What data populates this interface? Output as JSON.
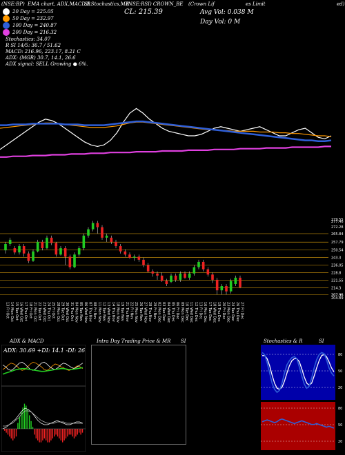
{
  "header": {
    "code": "(NSE:BP)",
    "line1_mid": "EMA chart, ADX,MACD,B",
    "line1_right": "SI,Stochastics,MR",
    "line1_name": "(NSE:RSI) CROWN_BE",
    "line1_far": "(Crown Lif",
    "line1_end": "es Limit",
    "line1_last": "ed)",
    "close_label": "CL: 215.39",
    "avg_vol": "Avg Vol: 0.038  M",
    "day_vol": "Day Vol: 0  M"
  },
  "legend": [
    {
      "label": "20  Day = 225.05",
      "color": "#ffffff"
    },
    {
      "label": "50  Day = 232.97",
      "color": "#ff9900"
    },
    {
      "label": "100  Day = 240.87",
      "color": "#2f5fd8"
    },
    {
      "label": "200  Day = 216.32",
      "color": "#e040e0"
    }
  ],
  "indicators": [
    "Stochastics: 34.07",
    "R                   SI 14/5: 36.7 / 51.62",
    "MACD: 216.96,  223.17,  8.21 C"
  ],
  "adx_lines": [
    "ADX:                              (MGR) 30.7, 14.1, 26.6",
    "ADX  signal: SELL Growing ● 6%."
  ],
  "price_levels": [
    "279.55",
    "277.46",
    "272.28",
    "265.84",
    "257.79",
    "250.54",
    "243.3",
    "236.05",
    "228.8",
    "221.55",
    "214.3",
    "207.96",
    "207.95",
    "204.89"
  ],
  "dates": [
    "13 Fri Oct",
    "14 Mon Oct",
    "15 Tue Oct",
    "16 Wed Oct",
    "17 Thu Oct",
    "18 Fri Oct",
    "21 Mon Oct",
    "22 Tue Oct",
    "23 Wed Oct",
    "24 Thu Oct",
    "25 Fri Oct",
    "28 Mon Oct",
    "29 Tue Oct",
    "30 Wed Oct",
    "31 Thu Oct",
    "04 Mon Nov",
    "05 Tue Nov",
    "06 Wed Nov",
    "07 Thu Nov",
    "08 Fri Nov",
    "11 Mon Nov",
    "12 Tue Nov",
    "13 Wed Nov",
    "14 Thu Nov",
    "18 Mon Nov",
    "19 Tue Nov",
    "21 Thu Nov",
    "22 Fri Nov",
    "25 Mon Nov",
    "26 Tue Nov",
    "27 Wed Nov",
    "28 Thu Nov",
    "29 Fri Nov",
    "02 Mon Dec",
    "03 Tue Dec",
    "04 Wed Dec",
    "05 Thu Dec",
    "06 Fri Dec",
    "09 Mon Dec",
    "10 Tue Dec",
    "11 Wed Dec",
    "12 Thu Dec",
    "13 Fri Dec",
    "16 Mon Dec",
    "17 Tue Dec",
    "18 Wed Dec",
    "19 Thu Dec",
    "20 Fri Dec",
    "23 Mon Dec",
    "24 Tue Dec",
    "26 Thu Dec",
    "27 Fri Dec"
  ],
  "panels": {
    "adx_title": "ADX  & MACD",
    "adx_box": "ADX: 30.69 +DI: 14.1 -DI: 26.59",
    "mr_title": "Intra  Day Trading Price  & MR",
    "mr_title_right": "SI",
    "stoch_title": "Stochastics & R",
    "stoch_title_right": "SI",
    "stoch_ticks": [
      "80",
      "50",
      "20"
    ],
    "rsi_ticks": [
      "80",
      "50",
      "20"
    ]
  },
  "colors": {
    "up": "#22cc22",
    "down": "#ee2222",
    "ema20": "#ffffff",
    "ema50": "#ff9900",
    "ema100": "#2f5fd8",
    "ema200": "#e040e0",
    "level": "#b8860b",
    "stoch_bg": "#0000aa",
    "rsi_bg": "#aa0000"
  },
  "chart_data": {
    "type": "candlestick",
    "ylim": [
      204.89,
      279.55
    ],
    "categories": [
      "13 Fri Oct",
      "14 Mon Oct",
      "15 Tue Oct",
      "16 Wed Oct",
      "17 Thu Oct",
      "18 Fri Oct",
      "21 Mon Oct",
      "22 Tue Oct",
      "23 Wed Oct",
      "24 Thu Oct",
      "25 Fri Oct",
      "28 Mon Oct",
      "29 Tue Oct",
      "30 Wed Oct",
      "31 Thu Oct",
      "04 Mon Nov",
      "05 Tue Nov",
      "06 Wed Nov",
      "07 Thu Nov",
      "08 Fri Nov",
      "11 Mon Nov",
      "12 Tue Nov",
      "13 Wed Nov",
      "14 Thu Nov",
      "18 Mon Nov",
      "19 Tue Nov",
      "21 Thu Nov",
      "22 Fri Nov",
      "25 Mon Nov",
      "26 Tue Nov",
      "27 Wed Nov",
      "28 Thu Nov",
      "29 Fri Nov",
      "02 Mon Dec",
      "03 Tue Dec",
      "04 Wed Dec",
      "05 Thu Dec",
      "06 Fri Dec",
      "09 Mon Dec",
      "10 Tue Dec",
      "11 Wed Dec",
      "12 Thu Dec",
      "13 Fri Dec",
      "16 Mon Dec",
      "17 Tue Dec",
      "18 Wed Dec",
      "19 Thu Dec",
      "20 Fri Dec",
      "23 Mon Dec",
      "24 Tue Dec",
      "26 Thu Dec",
      "27 Fri Dec"
    ],
    "candles": [
      [
        250,
        256,
        258,
        247
      ],
      [
        256,
        260,
        262,
        254
      ],
      [
        252,
        248,
        254,
        246
      ],
      [
        248,
        254,
        256,
        246
      ],
      [
        254,
        247,
        256,
        244
      ],
      [
        247,
        240,
        249,
        238
      ],
      [
        240,
        249,
        251,
        239
      ],
      [
        249,
        258,
        260,
        248
      ],
      [
        258,
        252,
        260,
        250
      ],
      [
        252,
        262,
        264,
        251
      ],
      [
        262,
        257,
        264,
        255
      ],
      [
        257,
        246,
        258,
        244
      ],
      [
        246,
        252,
        254,
        245
      ],
      [
        252,
        244,
        254,
        236
      ],
      [
        244,
        234,
        246,
        232
      ],
      [
        234,
        246,
        248,
        233
      ],
      [
        246,
        252,
        254,
        244
      ],
      [
        252,
        264,
        266,
        250
      ],
      [
        264,
        270,
        272,
        262
      ],
      [
        270,
        276,
        278,
        268
      ],
      [
        276,
        272,
        278,
        266
      ],
      [
        272,
        262,
        274,
        260
      ],
      [
        262,
        264,
        266,
        258
      ],
      [
        262,
        258,
        264,
        256
      ],
      [
        258,
        254,
        260,
        252
      ],
      [
        254,
        249,
        256,
        247
      ],
      [
        249,
        246,
        251,
        244
      ],
      [
        246,
        243,
        248,
        242
      ],
      [
        243,
        244,
        246,
        240
      ],
      [
        244,
        241,
        246,
        239
      ],
      [
        241,
        236,
        243,
        234
      ],
      [
        236,
        230,
        238,
        229
      ],
      [
        230,
        228,
        232,
        225
      ],
      [
        228,
        226,
        230,
        222
      ],
      [
        226,
        221,
        229,
        220
      ],
      [
        221,
        218,
        223,
        216
      ],
      [
        220,
        226,
        228,
        219
      ],
      [
        226,
        222,
        228,
        220
      ],
      [
        222,
        228,
        230,
        220
      ],
      [
        228,
        224,
        230,
        223
      ],
      [
        224,
        228,
        230,
        222
      ],
      [
        228,
        234,
        236,
        226
      ],
      [
        234,
        239,
        241,
        232
      ],
      [
        239,
        232,
        241,
        230
      ],
      [
        232,
        227,
        234,
        225
      ],
      [
        227,
        222,
        229,
        219
      ],
      [
        222,
        212,
        224,
        208
      ],
      [
        212,
        216,
        218,
        208
      ],
      [
        216,
        211,
        218,
        208
      ],
      [
        211,
        221,
        223,
        209
      ],
      [
        218,
        224,
        226,
        216
      ],
      [
        224,
        215,
        226,
        214
      ]
    ],
    "series": [
      {
        "name": "20  Day",
        "values": [
          12,
          18,
          24,
          30,
          36,
          42,
          48,
          52,
          50,
          46,
          40,
          34,
          28,
          22,
          18,
          16,
          18,
          24,
          34,
          48,
          60,
          66,
          60,
          52,
          46,
          40,
          36,
          34,
          32,
          30,
          30,
          32,
          36,
          40,
          42,
          40,
          38,
          36,
          38,
          40,
          42,
          38,
          34,
          30,
          30,
          34,
          38,
          40,
          34,
          28,
          26,
          30
        ]
      },
      {
        "name": "50  Day",
        "values": [
          40,
          41,
          42,
          43,
          44,
          45,
          46,
          47,
          47,
          46,
          45,
          44,
          43,
          42,
          41,
          41,
          41,
          42,
          43,
          45,
          47,
          48,
          48,
          47,
          46,
          45,
          44,
          43,
          42,
          41,
          40,
          39,
          38,
          38,
          37,
          37,
          36,
          36,
          36,
          36,
          35,
          35,
          35,
          34,
          34,
          33,
          33,
          32,
          31,
          30,
          30,
          29
        ]
      },
      {
        "name": "100  Day",
        "values": [
          44,
          44,
          45,
          45,
          45,
          46,
          46,
          46,
          46,
          46,
          45,
          45,
          45,
          44,
          44,
          44,
          44,
          45,
          46,
          47,
          48,
          49,
          49,
          48,
          47,
          46,
          45,
          44,
          43,
          42,
          41,
          40,
          39,
          38,
          37,
          36,
          35,
          34,
          33,
          32,
          31,
          30,
          29,
          28,
          27,
          26,
          25,
          24,
          24,
          23,
          23,
          24
        ]
      },
      {
        "name": "200  Day",
        "values": [
          2,
          2,
          3,
          3,
          3,
          4,
          4,
          4,
          5,
          5,
          5,
          6,
          6,
          6,
          7,
          7,
          7,
          8,
          8,
          8,
          8,
          9,
          9,
          9,
          9,
          10,
          10,
          10,
          10,
          11,
          11,
          11,
          11,
          12,
          12,
          12,
          12,
          13,
          13,
          13,
          13,
          14,
          14,
          14,
          14,
          15,
          15,
          15,
          15,
          15,
          16,
          16
        ]
      }
    ]
  }
}
